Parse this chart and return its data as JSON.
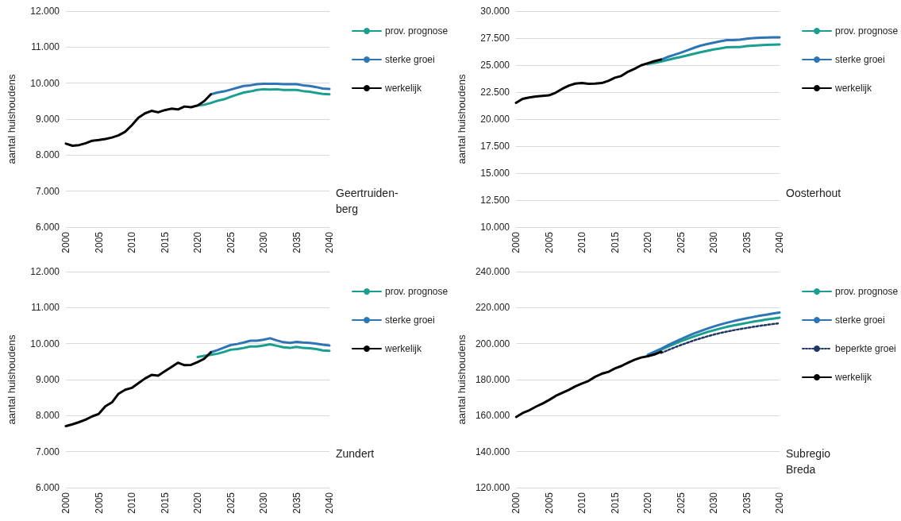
{
  "chart_data": [
    {
      "type": "line",
      "title": "Geertruiden-\nberg",
      "ylabel": "aantal huishoudens",
      "categories": [
        "2000",
        null,
        null,
        null,
        null,
        "2005",
        null,
        null,
        null,
        null,
        "2010",
        null,
        null,
        null,
        null,
        "2015",
        null,
        null,
        null,
        null,
        "2020",
        null,
        null,
        null,
        null,
        "2025",
        null,
        null,
        null,
        null,
        "2030",
        null,
        null,
        null,
        null,
        "2035",
        null,
        null,
        null,
        null,
        "2040"
      ],
      "ylim": [
        6000,
        12000
      ],
      "yticks": [
        {
          "value": 6000,
          "label": "6.000"
        },
        {
          "value": 7000,
          "label": "7.000"
        },
        {
          "value": 8000,
          "label": "8.000"
        },
        {
          "value": 9000,
          "label": "9.000"
        },
        {
          "value": 10000,
          "label": "10.000"
        },
        {
          "value": 11000,
          "label": "11.000"
        },
        {
          "value": 12000,
          "label": "12.000"
        }
      ],
      "grid": "y",
      "legend": "right",
      "series": [
        {
          "name": "prov. prognose",
          "color": "#1a9e8f",
          "values": [
            null,
            null,
            null,
            null,
            null,
            null,
            null,
            null,
            null,
            null,
            null,
            null,
            null,
            null,
            null,
            null,
            null,
            null,
            null,
            null,
            9380,
            9400,
            9450,
            9510,
            9550,
            9620,
            9680,
            9740,
            9770,
            9810,
            9830,
            9820,
            9830,
            9810,
            9810,
            9810,
            9780,
            9760,
            9730,
            9700,
            9690
          ]
        },
        {
          "name": "sterke groei",
          "color": "#2e75b6",
          "values": [
            null,
            null,
            null,
            null,
            null,
            null,
            null,
            null,
            null,
            null,
            null,
            null,
            null,
            null,
            null,
            null,
            null,
            null,
            null,
            null,
            null,
            null,
            9690,
            9740,
            9770,
            9820,
            9870,
            9920,
            9940,
            9970,
            9980,
            9980,
            9980,
            9970,
            9970,
            9970,
            9940,
            9920,
            9890,
            9850,
            9840
          ]
        },
        {
          "name": "werkelijk",
          "color": "#000000",
          "values": [
            8320,
            8260,
            8280,
            8330,
            8400,
            8420,
            8450,
            8490,
            8550,
            8650,
            8830,
            9040,
            9160,
            9230,
            9190,
            9250,
            9290,
            9270,
            9350,
            9330,
            9380,
            9500,
            9690,
            null,
            null,
            null,
            null,
            null,
            null,
            null,
            null,
            null,
            null,
            null,
            null,
            null,
            null,
            null,
            null,
            null,
            null
          ]
        }
      ]
    },
    {
      "type": "line",
      "title": "Oosterhout",
      "ylabel": "aantal huishoudens",
      "categories": [
        "2000",
        null,
        null,
        null,
        null,
        "2005",
        null,
        null,
        null,
        null,
        "2010",
        null,
        null,
        null,
        null,
        "2015",
        null,
        null,
        null,
        null,
        "2020",
        null,
        null,
        null,
        null,
        "2025",
        null,
        null,
        null,
        null,
        "2030",
        null,
        null,
        null,
        null,
        "2035",
        null,
        null,
        null,
        null,
        "2040"
      ],
      "ylim": [
        10000,
        30000
      ],
      "yticks": [
        {
          "value": 10000,
          "label": "10.000"
        },
        {
          "value": 12500,
          "label": "12.500"
        },
        {
          "value": 15000,
          "label": "15.000"
        },
        {
          "value": 17500,
          "label": "17.500"
        },
        {
          "value": 20000,
          "label": "20.000"
        },
        {
          "value": 22500,
          "label": "22.500"
        },
        {
          "value": 25000,
          "label": "25.000"
        },
        {
          "value": 27500,
          "label": "27.500"
        },
        {
          "value": 30000,
          "label": "30.000"
        }
      ],
      "grid": "y",
      "legend": "right",
      "series": [
        {
          "name": "prov. prognose",
          "color": "#1a9e8f",
          "values": [
            null,
            null,
            null,
            null,
            null,
            null,
            null,
            null,
            null,
            null,
            null,
            null,
            null,
            null,
            null,
            null,
            null,
            null,
            null,
            null,
            25100,
            25200,
            25330,
            25480,
            25620,
            25760,
            25900,
            26050,
            26200,
            26330,
            26450,
            26550,
            26650,
            26680,
            26680,
            26760,
            26800,
            26830,
            26870,
            26900,
            26910
          ]
        },
        {
          "name": "sterke groei",
          "color": "#2e75b6",
          "values": [
            null,
            null,
            null,
            null,
            null,
            null,
            null,
            null,
            null,
            null,
            null,
            null,
            null,
            null,
            null,
            null,
            null,
            null,
            null,
            null,
            null,
            null,
            25510,
            25750,
            25950,
            26150,
            26370,
            26600,
            26800,
            26950,
            27080,
            27200,
            27320,
            27320,
            27350,
            27450,
            27500,
            27530,
            27560,
            27580,
            27580
          ]
        },
        {
          "name": "werkelijk",
          "color": "#000000",
          "values": [
            21510,
            21880,
            22000,
            22100,
            22150,
            22200,
            22440,
            22800,
            23100,
            23290,
            23340,
            23270,
            23290,
            23340,
            23540,
            23830,
            24000,
            24390,
            24660,
            24980,
            25170,
            25370,
            25510,
            null,
            null,
            null,
            null,
            null,
            null,
            null,
            null,
            null,
            null,
            null,
            null,
            null,
            null,
            null,
            null,
            null,
            null
          ]
        }
      ]
    },
    {
      "type": "line",
      "title": "Zundert",
      "ylabel": "aantal huishoudens",
      "categories": [
        "2000",
        null,
        null,
        null,
        null,
        "2005",
        null,
        null,
        null,
        null,
        "2010",
        null,
        null,
        null,
        null,
        "2015",
        null,
        null,
        null,
        null,
        "2020",
        null,
        null,
        null,
        null,
        "2025",
        null,
        null,
        null,
        null,
        "2030",
        null,
        null,
        null,
        null,
        "2035",
        null,
        null,
        null,
        null,
        "2040"
      ],
      "ylim": [
        6000,
        12000
      ],
      "yticks": [
        {
          "value": 6000,
          "label": "6.000"
        },
        {
          "value": 7000,
          "label": "7.000"
        },
        {
          "value": 8000,
          "label": "8.000"
        },
        {
          "value": 9000,
          "label": "9.000"
        },
        {
          "value": 10000,
          "label": "10.000"
        },
        {
          "value": 11000,
          "label": "11.000"
        },
        {
          "value": 12000,
          "label": "12.000"
        }
      ],
      "grid": "y",
      "legend": "right",
      "series": [
        {
          "name": "prov. prognose",
          "color": "#1a9e8f",
          "values": [
            null,
            null,
            null,
            null,
            null,
            null,
            null,
            null,
            null,
            null,
            null,
            null,
            null,
            null,
            null,
            null,
            null,
            null,
            null,
            null,
            9630,
            9660,
            9690,
            9720,
            9770,
            9830,
            9850,
            9880,
            9920,
            9920,
            9950,
            9980,
            9940,
            9900,
            9880,
            9910,
            9880,
            9870,
            9850,
            9810,
            9800
          ]
        },
        {
          "name": "sterke groei",
          "color": "#2e75b6",
          "values": [
            null,
            null,
            null,
            null,
            null,
            null,
            null,
            null,
            null,
            null,
            null,
            null,
            null,
            null,
            null,
            null,
            null,
            null,
            null,
            null,
            null,
            null,
            9760,
            9820,
            9890,
            9960,
            9990,
            10030,
            10080,
            10080,
            10110,
            10150,
            10090,
            10040,
            10020,
            10050,
            10030,
            10020,
            10000,
            9970,
            9950
          ]
        },
        {
          "name": "werkelijk",
          "color": "#000000",
          "values": [
            7710,
            7760,
            7820,
            7890,
            7980,
            8050,
            8260,
            8370,
            8610,
            8720,
            8770,
            8900,
            9030,
            9130,
            9110,
            9230,
            9350,
            9470,
            9400,
            9410,
            9490,
            9580,
            9760,
            null,
            null,
            null,
            null,
            null,
            null,
            null,
            null,
            null,
            null,
            null,
            null,
            null,
            null,
            null,
            null,
            null,
            null
          ]
        }
      ]
    },
    {
      "type": "line",
      "title": "Subregio\nBreda",
      "ylabel": "aantal huishoudens",
      "categories": [
        "2000",
        null,
        null,
        null,
        null,
        "2005",
        null,
        null,
        null,
        null,
        "2010",
        null,
        null,
        null,
        null,
        "2015",
        null,
        null,
        null,
        null,
        "2020",
        null,
        null,
        null,
        null,
        "2025",
        null,
        null,
        null,
        null,
        "2030",
        null,
        null,
        null,
        null,
        "2035",
        null,
        null,
        null,
        null,
        "2040"
      ],
      "ylim": [
        120000,
        240000
      ],
      "yticks": [
        {
          "value": 120000,
          "label": "120.000"
        },
        {
          "value": 140000,
          "label": "140.000"
        },
        {
          "value": 160000,
          "label": "160.000"
        },
        {
          "value": 180000,
          "label": "180.000"
        },
        {
          "value": 200000,
          "label": "200.000"
        },
        {
          "value": 220000,
          "label": "220.000"
        },
        {
          "value": 240000,
          "label": "240.000"
        }
      ],
      "grid": "y",
      "legend": "right",
      "series": [
        {
          "name": "prov. prognose",
          "color": "#1a9e8f",
          "values": [
            null,
            null,
            null,
            null,
            null,
            null,
            null,
            null,
            null,
            null,
            null,
            null,
            null,
            null,
            null,
            null,
            null,
            null,
            null,
            null,
            193500,
            195000,
            196600,
            198200,
            199800,
            201300,
            202700,
            204000,
            205200,
            206400,
            207400,
            208400,
            209300,
            210100,
            210800,
            211500,
            212200,
            212800,
            213400,
            213900,
            214400
          ]
        },
        {
          "name": "sterke groei",
          "color": "#2e75b6",
          "values": [
            null,
            null,
            null,
            null,
            null,
            null,
            null,
            null,
            null,
            null,
            null,
            null,
            null,
            null,
            null,
            null,
            null,
            null,
            null,
            null,
            193800,
            195500,
            197200,
            199000,
            200800,
            202500,
            204100,
            205600,
            207000,
            208300,
            209500,
            210600,
            211600,
            212500,
            213300,
            214100,
            214800,
            215500,
            216100,
            216700,
            217300
          ]
        },
        {
          "name": "beperkte groei",
          "color": "#1f3864",
          "line_style": "dotted",
          "values": [
            null,
            null,
            null,
            null,
            null,
            null,
            null,
            null,
            null,
            null,
            null,
            null,
            null,
            null,
            null,
            null,
            null,
            null,
            null,
            null,
            null,
            null,
            194800,
            196300,
            197800,
            199200,
            200500,
            201800,
            202900,
            204000,
            205000,
            205900,
            206700,
            207400,
            208100,
            208700,
            209300,
            209900,
            210400,
            210900,
            211300
          ]
        },
        {
          "name": "werkelijk",
          "color": "#000000",
          "values": [
            159300,
            161500,
            163000,
            165000,
            166700,
            168700,
            171000,
            172700,
            174300,
            176300,
            177800,
            179300,
            181600,
            183300,
            184300,
            186200,
            187600,
            189400,
            191100,
            192300,
            193000,
            194000,
            195500,
            null,
            null,
            null,
            null,
            null,
            null,
            null,
            null,
            null,
            null,
            null,
            null,
            null,
            null,
            null,
            null,
            null,
            null
          ]
        }
      ]
    }
  ]
}
